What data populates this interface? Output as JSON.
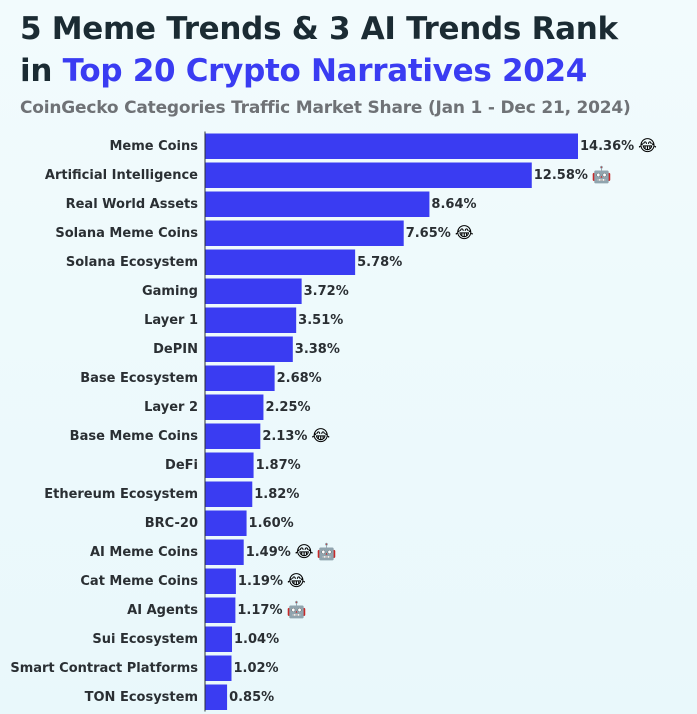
{
  "header": {
    "title_line1": "5 Meme Trends & 3 AI Trends Rank",
    "title_line2_prefix": "in ",
    "title_line2_accent": "Top 20 Crypto Narratives 2024",
    "subtitle": "CoinGecko Categories Traffic Market Share (Jan 1 - Dec 21, 2024)"
  },
  "colors": {
    "bar": "#3a3cf2",
    "accent": "#3a3cf2",
    "axis": "#2a2f33"
  },
  "icons": {
    "meme": "😂",
    "ai": "🤖"
  },
  "chart_data": {
    "type": "bar",
    "orientation": "horizontal",
    "categories": [
      "Meme Coins",
      "Artificial Intelligence",
      "Real World Assets",
      "Solana Meme Coins",
      "Solana Ecosystem",
      "Gaming",
      "Layer 1",
      "DePIN",
      "Base Ecosystem",
      "Layer 2",
      "Base Meme Coins",
      "DeFi",
      "Ethereum Ecosystem",
      "BRC-20",
      "AI Meme Coins",
      "Cat Meme Coins",
      "AI Agents",
      "Sui Ecosystem",
      "Smart Contract Platforms",
      "TON Ecosystem"
    ],
    "values": [
      14.36,
      12.58,
      8.64,
      7.65,
      5.78,
      3.72,
      3.51,
      3.38,
      2.68,
      2.25,
      2.13,
      1.87,
      1.82,
      1.6,
      1.49,
      1.19,
      1.17,
      1.04,
      1.02,
      0.85
    ],
    "value_labels": [
      "14.36%",
      "12.58%",
      "8.64%",
      "7.65%",
      "5.78%",
      "3.72%",
      "3.51%",
      "3.38%",
      "2.68%",
      "2.25%",
      "2.13%",
      "1.87%",
      "1.82%",
      "1.60%",
      "1.49%",
      "1.19%",
      "1.17%",
      "1.04%",
      "1.02%",
      "0.85%"
    ],
    "markers": [
      [
        "meme"
      ],
      [
        "ai"
      ],
      [],
      [
        "meme"
      ],
      [],
      [],
      [],
      [],
      [],
      [],
      [
        "meme"
      ],
      [],
      [],
      [],
      [
        "meme",
        "ai"
      ],
      [
        "meme"
      ],
      [
        "ai"
      ],
      [],
      [],
      []
    ],
    "xlim": [
      0,
      14.36
    ],
    "grid": false,
    "legend": false
  }
}
